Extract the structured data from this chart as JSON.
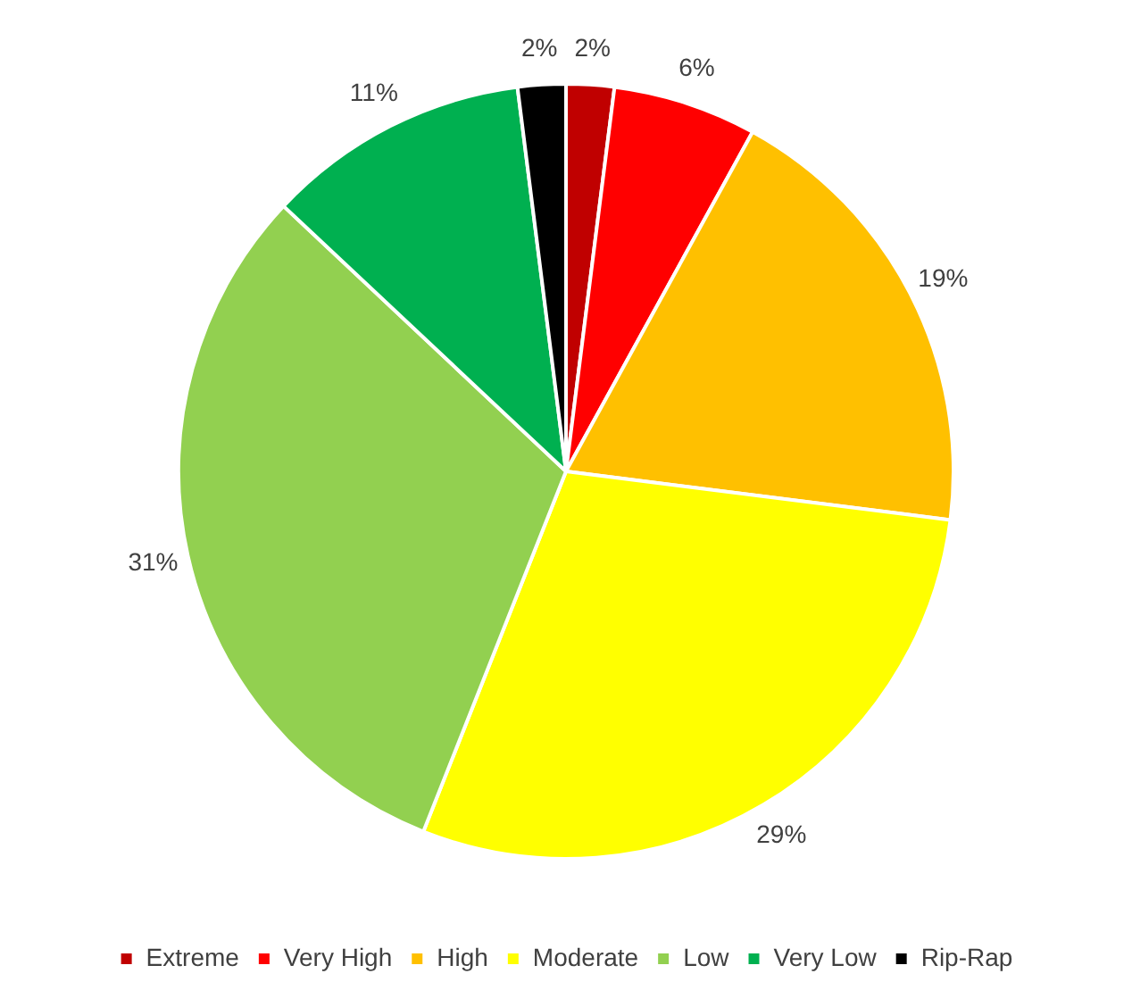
{
  "chart_data": {
    "type": "pie",
    "categories": [
      "Extreme",
      "Very High",
      "High",
      "Moderate",
      "Low",
      "Very Low",
      "Rip-Rap"
    ],
    "values": [
      2,
      6,
      19,
      29,
      31,
      11,
      2
    ],
    "value_labels": [
      "2%",
      "6%",
      "19%",
      "29%",
      "31%",
      "11%",
      "2%"
    ],
    "colors": [
      "#c00000",
      "#ff0000",
      "#ffc000",
      "#ffff00",
      "#92d050",
      "#00b050",
      "#000000"
    ],
    "legend": "bottom"
  }
}
